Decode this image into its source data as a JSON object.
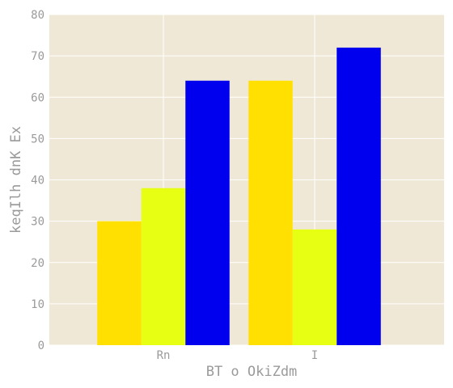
{
  "chart_data": {
    "type": "bar",
    "title": "",
    "xlabel": "BT  o OkiZdm",
    "ylabel": "keqIlh dnK  Ex",
    "categories": [
      "Rn",
      "I"
    ],
    "series": [
      {
        "values": [
          30,
          64
        ]
      },
      {
        "values": [
          38,
          28
        ]
      },
      {
        "values": [
          64,
          72
        ]
      }
    ],
    "ylim": [
      0,
      80
    ],
    "yticks": [
      0,
      10,
      20,
      30,
      40,
      50,
      60,
      70,
      80
    ],
    "grid": true,
    "colors": {
      "plot_background": "#efe8d6",
      "grid": "#ffffff",
      "series": [
        "#ffe000",
        "#e6ff12",
        "#0000ee"
      ]
    }
  }
}
